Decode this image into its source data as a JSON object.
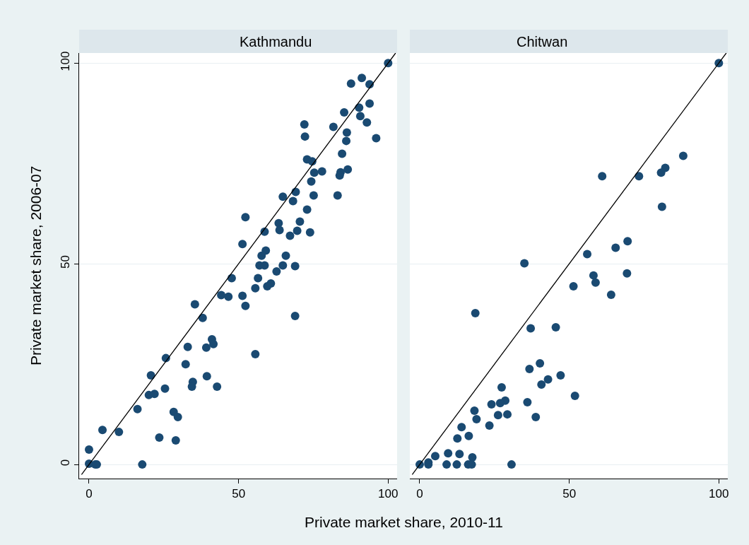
{
  "chart_data": [
    {
      "type": "scatter",
      "title": "Kathmandu",
      "xlabel": "Private market share, 2010-11",
      "ylabel": "Private market share, 2006-07",
      "xlim": [
        -3.3,
        103
      ],
      "ylim": [
        -3.5,
        102.5
      ],
      "xticks": [
        0,
        50,
        100
      ],
      "yticks": [
        0,
        50,
        100
      ],
      "grid": "y",
      "marker": "circle",
      "series": [
        {
          "color": "#1a4a72",
          "x": [
            100,
            91.2,
            87.6,
            93.8,
            93.8,
            90.3,
            85.3,
            90.7,
            92.9,
            72.0,
            81.7,
            72.2,
            86.2,
            86.0,
            96.0,
            84.6,
            72.9,
            74.6,
            75.3,
            77.9,
            84.1,
            83.8,
            86.5,
            74.3,
            64.8,
            68.2,
            69.1,
            75.1,
            83.1,
            72.9,
            52.3,
            70.5,
            63.4,
            63.7,
            58.7,
            69.6,
            73.9,
            67.2,
            51.3,
            59.1,
            57.7,
            65.8,
            57.0,
            58.7,
            64.8,
            68.9,
            62.7,
            56.5,
            47.7,
            60.8,
            59.6,
            55.6,
            44.2,
            46.6,
            51.3,
            52.3,
            35.4,
            38.0,
            68.9,
            41.1,
            41.6,
            55.6,
            33.0,
            39.2,
            32.3,
            25.7,
            20.7,
            20.0,
            21.9,
            25.4,
            34.7,
            34.4,
            39.4,
            42.8,
            16.2,
            28.3,
            29.7,
            4.5,
            10.0,
            23.5,
            29.0,
            0,
            0,
            2.1,
            2.6,
            17.8
          ],
          "values": [
            100,
            96.3,
            94.9,
            94.7,
            89.9,
            88.9,
            87.7,
            86.8,
            85.2,
            84.7,
            84.1,
            81.7,
            82.7,
            80.6,
            81.3,
            77.4,
            76.0,
            75.5,
            72.7,
            73.0,
            72.8,
            72.0,
            73.5,
            70.5,
            66.7,
            65.6,
            67.9,
            67.0,
            67.0,
            63.5,
            61.6,
            60.5,
            60.1,
            58.4,
            58.0,
            58.2,
            57.8,
            57.0,
            54.9,
            53.3,
            52.0,
            52.0,
            49.6,
            49.6,
            49.6,
            49.4,
            48.1,
            46.4,
            46.4,
            45.1,
            44.4,
            43.9,
            42.2,
            41.8,
            42.0,
            39.5,
            39.9,
            36.5,
            37.0,
            31.2,
            30.0,
            27.5,
            29.3,
            29.1,
            25.0,
            26.5,
            22.2,
            17.3,
            17.6,
            18.9,
            20.6,
            19.4,
            22.0,
            19.4,
            13.8,
            13.1,
            11.8,
            8.6,
            8.1,
            6.7,
            6.0,
            3.7,
            0.2,
            0,
            0,
            0
          ]
        },
        {
          "type": "line",
          "color": "#000000",
          "marker": "none",
          "x": [
            -2.5,
            102.5
          ],
          "values": [
            -2.5,
            102.5
          ]
        }
      ]
    },
    {
      "type": "scatter",
      "title": "Chitwan",
      "xlim": [
        -3.3,
        103
      ],
      "ylim": [
        -3.5,
        102.5
      ],
      "xticks": [
        0,
        50,
        100
      ],
      "yticks": [
        0,
        50,
        100
      ],
      "grid": "y",
      "marker": "circle",
      "tick_labels": "x",
      "series": [
        {
          "color": "#1a4a72",
          "x": [
            100,
            88.1,
            82.1,
            80.7,
            73.3,
            61.0,
            81.0,
            69.5,
            65.5,
            56.0,
            35.0,
            69.3,
            58.1,
            58.8,
            51.4,
            64.0,
            18.6,
            37.1,
            45.5,
            40.2,
            36.7,
            47.1,
            42.9,
            40.7,
            51.9,
            27.4,
            28.6,
            26.9,
            24.0,
            36.0,
            18.3,
            19.0,
            26.2,
            29.3,
            38.8,
            23.3,
            14.0,
            12.6,
            16.4,
            5.2,
            9.5,
            13.3,
            17.6,
            0,
            2.9,
            2.9,
            9.0,
            12.4,
            16.2,
            17.4,
            30.7
          ],
          "values": [
            100,
            76.9,
            73.9,
            72.7,
            71.8,
            71.8,
            64.2,
            55.6,
            54.0,
            52.4,
            50.1,
            47.6,
            47.1,
            45.3,
            44.4,
            42.3,
            37.7,
            33.9,
            34.2,
            25.2,
            23.8,
            22.2,
            21.2,
            19.9,
            17.1,
            19.2,
            15.9,
            15.3,
            15.0,
            15.5,
            13.4,
            11.3,
            12.3,
            12.5,
            11.8,
            9.7,
            9.3,
            6.5,
            7.1,
            2.1,
            2.8,
            2.6,
            1.8,
            0,
            0.5,
            0,
            0,
            0,
            0,
            0,
            0
          ]
        },
        {
          "type": "line",
          "color": "#000000",
          "marker": "none",
          "x": [
            -2.5,
            102.5
          ],
          "values": [
            -2.5,
            102.5
          ]
        }
      ]
    }
  ]
}
